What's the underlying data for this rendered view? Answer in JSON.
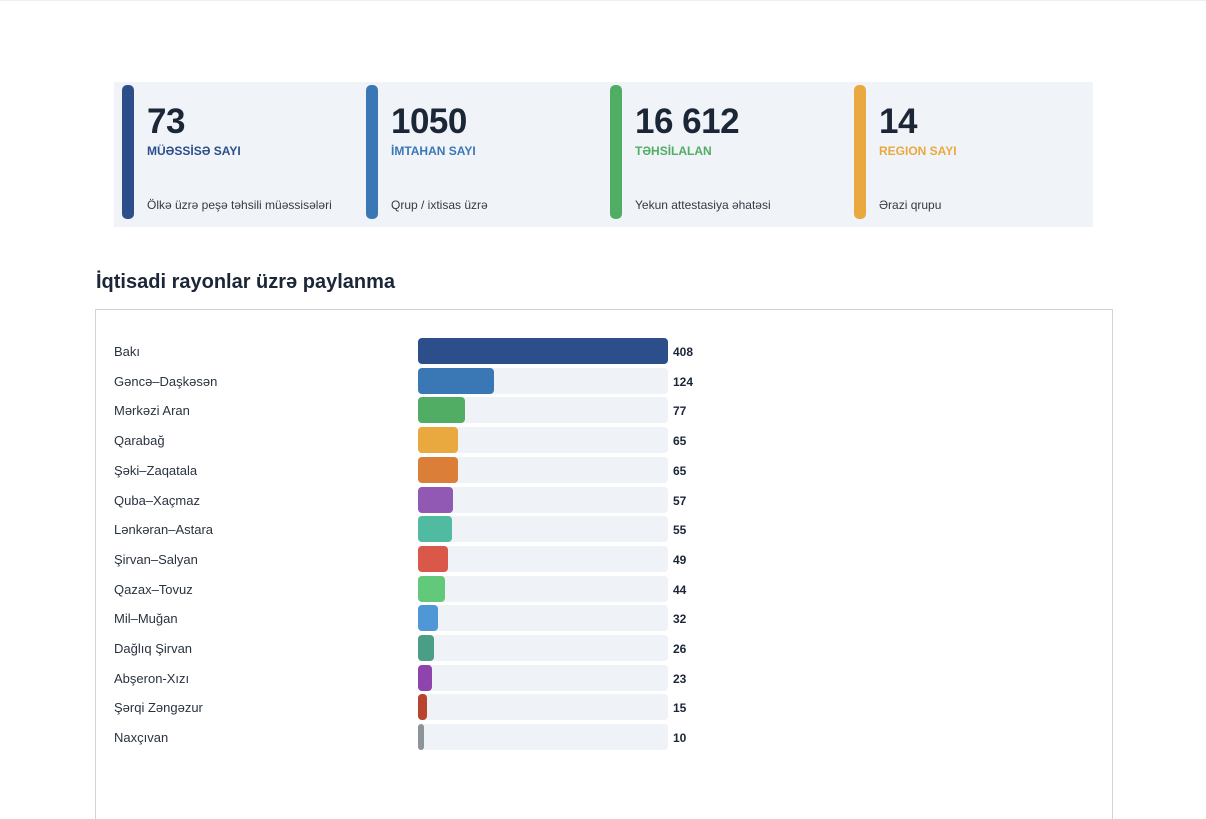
{
  "stats": [
    {
      "value": "73",
      "label": "MÜƏSSİSƏ SAYI",
      "desc": "Ölkə üzrə peşə təhsili müəssisələri",
      "color": "#2c4f8c"
    },
    {
      "value": "1050",
      "label": "İMTAHAN SAYI",
      "desc": "Qrup / ixtisas üzrə",
      "color": "#3a78b5"
    },
    {
      "value": "16 612",
      "label": "TƏHSİLALAN",
      "desc": "Yekun attestasiya əhatəsi",
      "color": "#52ad64"
    },
    {
      "value": "14",
      "label": "REGION SAYI",
      "desc": "Ərazi qrupu",
      "color": "#e9a93f"
    }
  ],
  "section_title": "İqtisadi rayonlar üzrə paylanma",
  "chart_data": {
    "type": "bar",
    "orientation": "horizontal",
    "categories": [
      "Bakı",
      "Gəncə–Daşkəsən",
      "Mərkəzi Aran",
      "Qarabağ",
      "Şəki–Zaqatala",
      "Quba–Xaçmaz",
      "Lənkəran–Astara",
      "Şirvan–Salyan",
      "Qazax–Tovuz",
      "Mil–Muğan",
      "Dağlıq Şirvan",
      "Abşeron-Xızı",
      "Şərqi Zəngəzur",
      "Naxçıvan"
    ],
    "values": [
      408,
      124,
      77,
      65,
      65,
      57,
      55,
      49,
      44,
      32,
      26,
      23,
      15,
      10
    ],
    "value_labels": [
      "408",
      "124",
      "77",
      "65",
      "65",
      "57",
      "55",
      "49",
      "44",
      "32",
      "26",
      "23",
      "15",
      "10"
    ],
    "max": 408,
    "colors": [
      "#2c4f8c",
      "#3a78b5",
      "#52ad64",
      "#e9a93f",
      "#db7f38",
      "#9159b4",
      "#50bba0",
      "#d9584a",
      "#62c97a",
      "#4f97d6",
      "#4a9e86",
      "#8e44ad",
      "#b8442e",
      "#8a9499"
    ]
  }
}
